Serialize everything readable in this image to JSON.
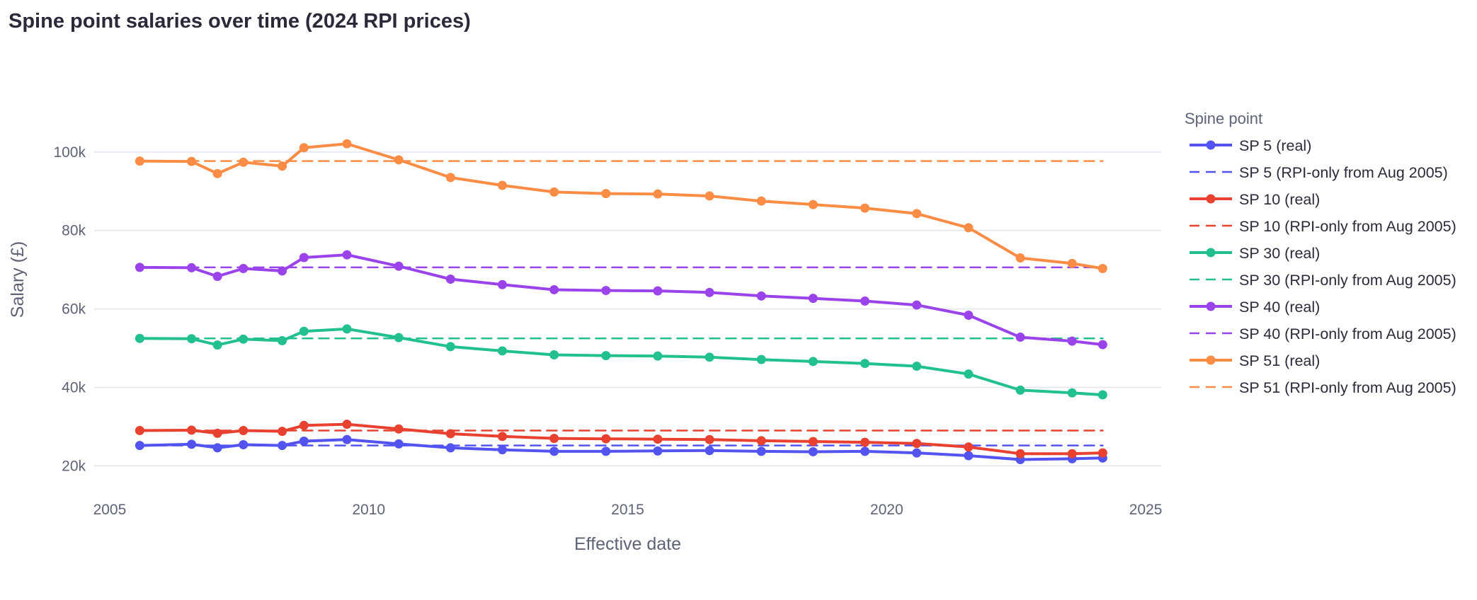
{
  "chart_data": {
    "type": "line",
    "title": "Spine point salaries over time (2024 RPI prices)",
    "xlabel": "Effective date",
    "ylabel": "Salary (£)",
    "xlim": [
      2004.7,
      2025.3
    ],
    "ylim": [
      12500,
      113500
    ],
    "xticks": [
      2005,
      2010,
      2015,
      2020,
      2025
    ],
    "xtick_labels": [
      "2005",
      "2010",
      "2015",
      "2020",
      "2025"
    ],
    "yticks": [
      20000,
      40000,
      60000,
      80000,
      100000
    ],
    "ytick_labels": [
      "20k",
      "40k",
      "60k",
      "80k",
      "100k"
    ],
    "grid": "horizontal",
    "legend_title": "Spine point",
    "legend_position": "right",
    "x": [
      2005.58,
      2006.58,
      2007.08,
      2007.58,
      2008.33,
      2008.75,
      2009.58,
      2010.58,
      2011.58,
      2012.58,
      2013.58,
      2014.58,
      2015.58,
      2016.58,
      2017.58,
      2018.58,
      2019.58,
      2020.58,
      2021.58,
      2022.58,
      2023.58,
      2024.17
    ],
    "series": [
      {
        "name": "SP 5 (real)",
        "color": "#5353f0",
        "dash": "solid",
        "markers": true,
        "values": [
          25200,
          25500,
          24600,
          25400,
          25200,
          26300,
          26700,
          25600,
          24600,
          24100,
          23700,
          23700,
          23800,
          23900,
          23700,
          23600,
          23700,
          23300,
          22600,
          21600,
          21800,
          22000
        ]
      },
      {
        "name": "SP 5 (RPI-only from Aug 2005)",
        "color": "#5353f0",
        "dash": "dash",
        "markers": false,
        "values": [
          25200,
          25200,
          25200,
          25200,
          25200,
          25200,
          25200,
          25200,
          25200,
          25200,
          25200,
          25200,
          25200,
          25200,
          25200,
          25200,
          25200,
          25200,
          25200,
          25200,
          25200,
          25200
        ]
      },
      {
        "name": "SP 10 (real)",
        "color": "#e8412f",
        "dash": "solid",
        "markers": true,
        "values": [
          29000,
          29100,
          28300,
          29000,
          28800,
          30300,
          30600,
          29400,
          28200,
          27500,
          27000,
          26900,
          26800,
          26700,
          26400,
          26200,
          26000,
          25700,
          24800,
          23100,
          23100,
          23300
        ]
      },
      {
        "name": "SP 10 (RPI-only from Aug 2005)",
        "color": "#e8412f",
        "dash": "dash",
        "markers": false,
        "values": [
          29000,
          29000,
          29000,
          29000,
          29000,
          29000,
          29000,
          29000,
          29000,
          29000,
          29000,
          29000,
          29000,
          29000,
          29000,
          29000,
          29000,
          29000,
          29000,
          29000,
          29000,
          29000
        ]
      },
      {
        "name": "SP 30 (real)",
        "color": "#22c08f",
        "dash": "solid",
        "markers": true,
        "values": [
          52500,
          52400,
          50800,
          52300,
          51900,
          54300,
          54900,
          52700,
          50400,
          49300,
          48300,
          48100,
          48000,
          47700,
          47100,
          46600,
          46100,
          45400,
          43400,
          39300,
          38600,
          38100
        ]
      },
      {
        "name": "SP 30 (RPI-only from Aug 2005)",
        "color": "#22c08f",
        "dash": "dash",
        "markers": false,
        "values": [
          52500,
          52500,
          52500,
          52500,
          52500,
          52500,
          52500,
          52500,
          52500,
          52500,
          52500,
          52500,
          52500,
          52500,
          52500,
          52500,
          52500,
          52500,
          52500,
          52500,
          52500,
          52500
        ]
      },
      {
        "name": "SP 40 (real)",
        "color": "#9b43eb",
        "dash": "solid",
        "markers": true,
        "values": [
          70600,
          70500,
          68300,
          70300,
          69700,
          73100,
          73800,
          70900,
          67600,
          66200,
          64900,
          64700,
          64600,
          64200,
          63300,
          62700,
          62000,
          61000,
          58400,
          52800,
          51800,
          50900
        ]
      },
      {
        "name": "SP 40 (RPI-only from Aug 2005)",
        "color": "#9b43eb",
        "dash": "dash",
        "markers": false,
        "values": [
          70600,
          70600,
          70600,
          70600,
          70600,
          70600,
          70600,
          70600,
          70600,
          70600,
          70600,
          70600,
          70600,
          70600,
          70600,
          70600,
          70600,
          70600,
          70600,
          70600,
          70600,
          70600
        ]
      },
      {
        "name": "SP 51 (real)",
        "color": "#fb8c45",
        "dash": "solid",
        "markers": true,
        "values": [
          97700,
          97600,
          94500,
          97400,
          96400,
          101100,
          102100,
          98000,
          93500,
          91500,
          89800,
          89400,
          89300,
          88800,
          87500,
          86600,
          85700,
          84300,
          80700,
          73000,
          71600,
          70300
        ]
      },
      {
        "name": "SP 51 (RPI-only from Aug 2005)",
        "color": "#fb8c45",
        "dash": "dash",
        "markers": false,
        "values": [
          97700,
          97700,
          97700,
          97700,
          97700,
          97700,
          97700,
          97700,
          97700,
          97700,
          97700,
          97700,
          97700,
          97700,
          97700,
          97700,
          97700,
          97700,
          97700,
          97700,
          97700,
          97700
        ]
      }
    ]
  }
}
